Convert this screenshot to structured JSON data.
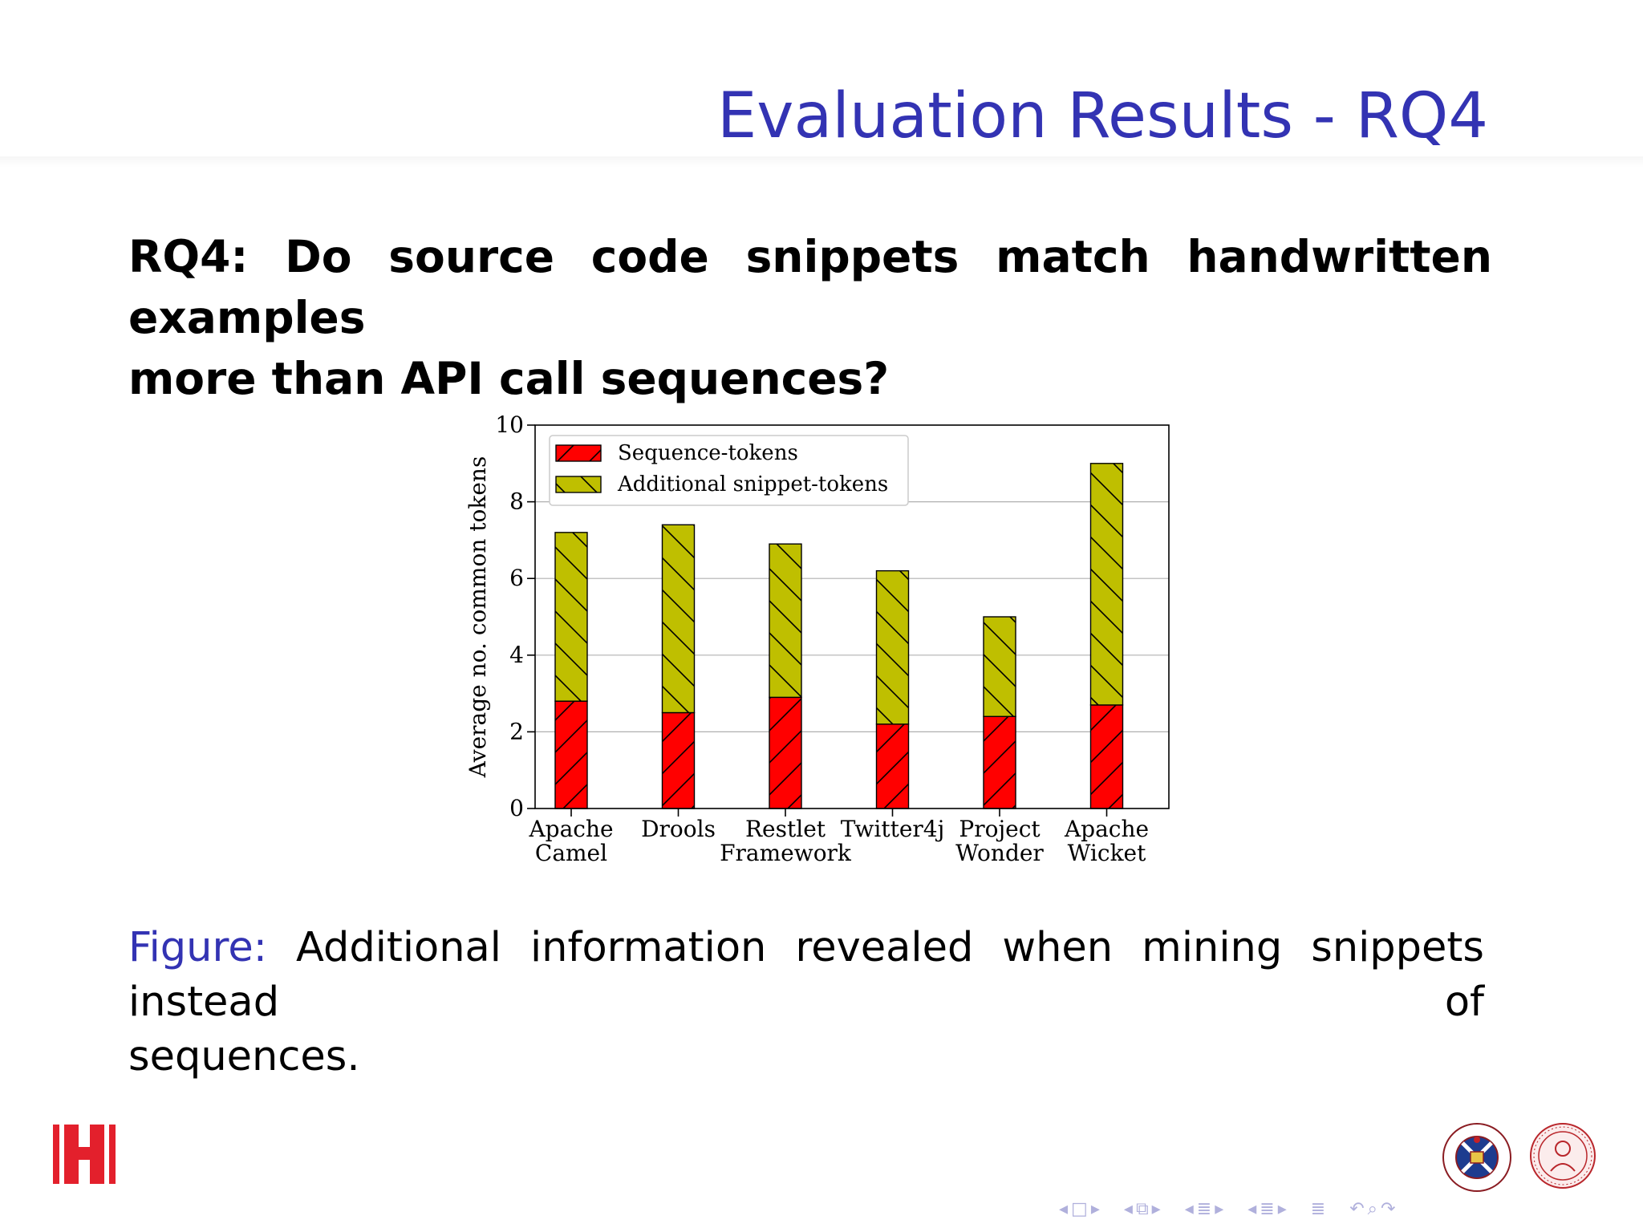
{
  "slide": {
    "title": "Evaluation Results - RQ4",
    "question_line1": "RQ4: Do source code snippets match handwritten examples",
    "question_line2": "more than API call sequences?",
    "caption_label": "Figure:",
    "caption_line1": "Additional information revealed when mining snippets instead of",
    "caption_line2": "sequences."
  },
  "colors": {
    "title": "#3333b3",
    "sequence": "#ff0000",
    "snippet": "#bfbf00",
    "gridline": "#b0b0b0"
  },
  "chart_data": {
    "type": "bar",
    "stacked": true,
    "categories": [
      [
        "Apache",
        "Camel"
      ],
      [
        "Drools"
      ],
      [
        "Restlet",
        "Framework"
      ],
      [
        "Twitter4j"
      ],
      [
        "Project",
        "Wonder"
      ],
      [
        "Apache",
        "Wicket"
      ]
    ],
    "series": [
      {
        "name": "Sequence-tokens",
        "values": [
          2.8,
          2.5,
          2.9,
          2.2,
          2.4,
          2.7
        ],
        "color": "#ff0000",
        "hatch": "/"
      },
      {
        "name": "Additional snippet-tokens",
        "values": [
          4.4,
          4.9,
          4.0,
          4.0,
          2.6,
          6.3
        ],
        "color": "#bfbf00",
        "hatch": "\\"
      }
    ],
    "ylabel": "Average no. common tokens",
    "xlabel": "",
    "ylim": [
      0,
      10
    ],
    "yticks": [
      0,
      2,
      4,
      6,
      8,
      10
    ],
    "grid": "horizontal",
    "legend": "top-left"
  },
  "navigation": {
    "icons": [
      "nav-prev-icon",
      "frame-icon",
      "nav-next-icon",
      "section-icon",
      "subsection-icon",
      "back-icon",
      "search-icon"
    ]
  }
}
